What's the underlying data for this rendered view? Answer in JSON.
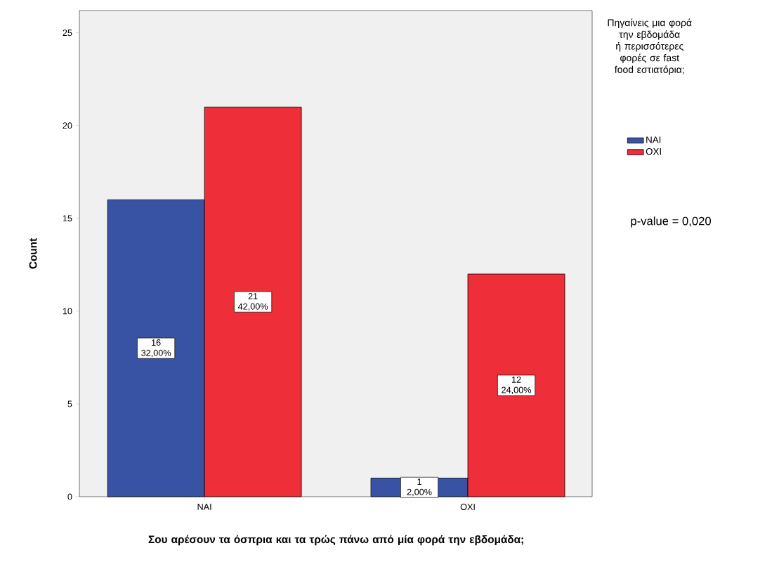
{
  "chart_data": {
    "type": "bar",
    "xlabel": "Σου αρέσουν τα όσπρια και τα τρώς πάνω από μία φορά την εβδομάδα;",
    "ylabel": "Count",
    "legend_title": "Πηγαίνεις μια φορά την εβδομάδα ή περισσότερες φορές σε fast food εστιατόρια;",
    "categories": [
      "ΝΑΙ",
      "ΟΧΙ"
    ],
    "series": [
      {
        "name": "ΝΑΙ",
        "color": "#3953a4",
        "values": [
          16,
          1
        ],
        "value_labels": [
          "16 32,00%",
          "1 2,00%"
        ]
      },
      {
        "name": "ΟΧΙ",
        "color": "#ee2e38",
        "values": [
          21,
          12
        ],
        "value_labels": [
          "21 42,00%",
          "12 24,00%"
        ]
      }
    ],
    "ylim": [
      0,
      26.2
    ],
    "yticks": [
      0,
      5,
      10,
      15,
      20,
      25
    ],
    "legend": "right",
    "annotations": [
      "p-value = 0,020"
    ]
  }
}
